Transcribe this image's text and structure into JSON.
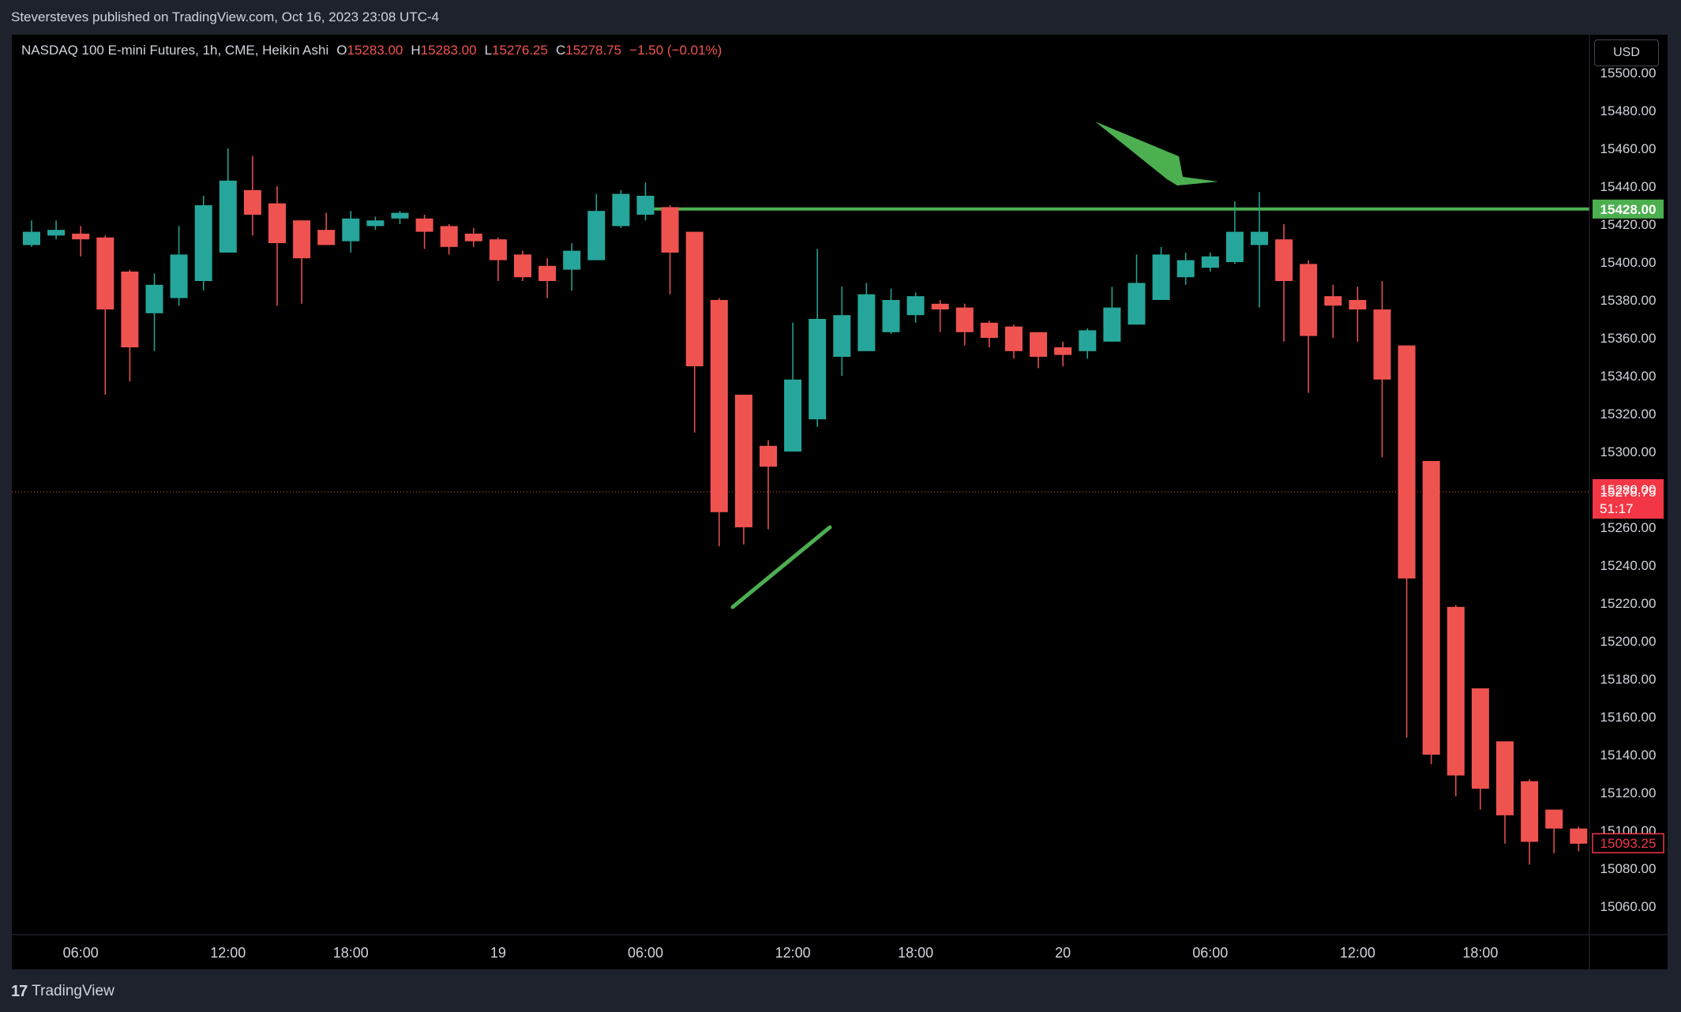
{
  "header": {
    "published_text": "Steversteves published on TradingView.com, Oct 16, 2023 23:08 UTC-4"
  },
  "legend": {
    "symbol": "NASDAQ 100 E-mini Futures, 1h, CME, Heikin Ashi",
    "o_label": "O",
    "o_value": "15283.00",
    "h_label": "H",
    "h_value": "15283.00",
    "l_label": "L",
    "l_value": "15276.25",
    "c_label": "C",
    "c_value": "15278.75",
    "change": "−1.50 (−0.01%)"
  },
  "price_axis": {
    "currency": "USD"
  },
  "footer": {
    "brand": "TradingView",
    "logo_glyph": "17"
  },
  "colors": {
    "up": "#26a69a",
    "down": "#ef5350",
    "annotation": "#4caf50",
    "axis_text": "#d1d4dc",
    "background": "#000000"
  },
  "chart_data": {
    "type": "candlestick",
    "title": "NASDAQ 100 E-mini Futures, 1h, CME, Heikin Ashi",
    "ylim": [
      15045,
      15520
    ],
    "y_ticks": [
      15060,
      15080,
      15100,
      15120,
      15140,
      15160,
      15180,
      15200,
      15220,
      15240,
      15260,
      15280,
      15300,
      15320,
      15340,
      15360,
      15380,
      15400,
      15420,
      15440,
      15460,
      15480,
      15500
    ],
    "x_ticks": [
      {
        "index": 2,
        "label": "06:00"
      },
      {
        "index": 8,
        "label": "12:00"
      },
      {
        "index": 13,
        "label": "18:00"
      },
      {
        "index": 19,
        "label": "19"
      },
      {
        "index": 25,
        "label": "06:00"
      },
      {
        "index": 31,
        "label": "12:00"
      },
      {
        "index": 36,
        "label": "18:00"
      },
      {
        "index": 42,
        "label": "20"
      },
      {
        "index": 48,
        "label": "06:00"
      },
      {
        "index": 54,
        "label": "12:00"
      },
      {
        "index": 59,
        "label": "18:00"
      }
    ],
    "candles": [
      {
        "o": 15409,
        "h": 15422,
        "l": 15408,
        "c": 15416
      },
      {
        "o": 15414,
        "h": 15422,
        "l": 15412,
        "c": 15417
      },
      {
        "o": 15415,
        "h": 15419,
        "l": 15403,
        "c": 15412
      },
      {
        "o": 15413,
        "h": 15414,
        "l": 15330,
        "c": 15375
      },
      {
        "o": 15395,
        "h": 15396,
        "l": 15337,
        "c": 15355
      },
      {
        "o": 15373,
        "h": 15394,
        "l": 15353,
        "c": 15388
      },
      {
        "o": 15381,
        "h": 15419,
        "l": 15377,
        "c": 15404
      },
      {
        "o": 15390,
        "h": 15435,
        "l": 15385,
        "c": 15430
      },
      {
        "o": 15405,
        "h": 15460,
        "l": 15405,
        "c": 15443
      },
      {
        "o": 15438,
        "h": 15456,
        "l": 15414,
        "c": 15425
      },
      {
        "o": 15431,
        "h": 15440,
        "l": 15377,
        "c": 15410
      },
      {
        "o": 15422,
        "h": 15422,
        "l": 15378,
        "c": 15402
      },
      {
        "o": 15417,
        "h": 15426,
        "l": 15413,
        "c": 15409
      },
      {
        "o": 15411,
        "h": 15427,
        "l": 15405,
        "c": 15423
      },
      {
        "o": 15419,
        "h": 15424,
        "l": 15417,
        "c": 15422
      },
      {
        "o": 15423,
        "h": 15427,
        "l": 15420,
        "c": 15426
      },
      {
        "o": 15423,
        "h": 15425,
        "l": 15407,
        "c": 15416
      },
      {
        "o": 15419,
        "h": 15420,
        "l": 15404,
        "c": 15408
      },
      {
        "o": 15415,
        "h": 15418,
        "l": 15408,
        "c": 15411
      },
      {
        "o": 15412,
        "h": 15413,
        "l": 15390,
        "c": 15401
      },
      {
        "o": 15404,
        "h": 15406,
        "l": 15390,
        "c": 15392
      },
      {
        "o": 15398,
        "h": 15402,
        "l": 15381,
        "c": 15390
      },
      {
        "o": 15396,
        "h": 15410,
        "l": 15385,
        "c": 15406
      },
      {
        "o": 15401,
        "h": 15436,
        "l": 15401,
        "c": 15427
      },
      {
        "o": 15419,
        "h": 15438,
        "l": 15418,
        "c": 15436
      },
      {
        "o": 15425,
        "h": 15442,
        "l": 15422,
        "c": 15435
      },
      {
        "o": 15429,
        "h": 15430,
        "l": 15383,
        "c": 15405
      },
      {
        "o": 15416,
        "h": 15416,
        "l": 15310,
        "c": 15345
      },
      {
        "o": 15380,
        "h": 15381,
        "l": 15250,
        "c": 15268
      },
      {
        "o": 15330,
        "h": 15330,
        "l": 15251,
        "c": 15260
      },
      {
        "o": 15303,
        "h": 15306,
        "l": 15259,
        "c": 15292
      },
      {
        "o": 15300,
        "h": 15368,
        "l": 15300,
        "c": 15338
      },
      {
        "o": 15317,
        "h": 15407,
        "l": 15313,
        "c": 15370
      },
      {
        "o": 15350,
        "h": 15387,
        "l": 15340,
        "c": 15372
      },
      {
        "o": 15353,
        "h": 15389,
        "l": 15353,
        "c": 15383
      },
      {
        "o": 15363,
        "h": 15386,
        "l": 15362,
        "c": 15380
      },
      {
        "o": 15372,
        "h": 15384,
        "l": 15368,
        "c": 15382
      },
      {
        "o": 15378,
        "h": 15380,
        "l": 15363,
        "c": 15375
      },
      {
        "o": 15376,
        "h": 15378,
        "l": 15356,
        "c": 15363
      },
      {
        "o": 15368,
        "h": 15369,
        "l": 15355,
        "c": 15360
      },
      {
        "o": 15366,
        "h": 15367,
        "l": 15349,
        "c": 15353
      },
      {
        "o": 15363,
        "h": 15363,
        "l": 15344,
        "c": 15350
      },
      {
        "o": 15355,
        "h": 15358,
        "l": 15345,
        "c": 15351
      },
      {
        "o": 15353,
        "h": 15365,
        "l": 15349,
        "c": 15364
      },
      {
        "o": 15358,
        "h": 15387,
        "l": 15358,
        "c": 15376
      },
      {
        "o": 15367,
        "h": 15404,
        "l": 15367,
        "c": 15389
      },
      {
        "o": 15380,
        "h": 15408,
        "l": 15380,
        "c": 15404
      },
      {
        "o": 15392,
        "h": 15405,
        "l": 15388,
        "c": 15401
      },
      {
        "o": 15397,
        "h": 15405,
        "l": 15395,
        "c": 15403
      },
      {
        "o": 15400,
        "h": 15432,
        "l": 15399,
        "c": 15416
      },
      {
        "o": 15409,
        "h": 15437,
        "l": 15376,
        "c": 15416
      },
      {
        "o": 15412,
        "h": 15420,
        "l": 15358,
        "c": 15390
      },
      {
        "o": 15399,
        "h": 15401,
        "l": 15331,
        "c": 15361
      },
      {
        "o": 15382,
        "h": 15388,
        "l": 15360,
        "c": 15377
      },
      {
        "o": 15380,
        "h": 15387,
        "l": 15358,
        "c": 15375
      },
      {
        "o": 15375,
        "h": 15390,
        "l": 15297,
        "c": 15338
      },
      {
        "o": 15356,
        "h": 15356,
        "l": 15149,
        "c": 15233
      },
      {
        "o": 15295,
        "h": 15295,
        "l": 15135,
        "c": 15140
      },
      {
        "o": 15218,
        "h": 15219,
        "l": 15118,
        "c": 15129
      },
      {
        "o": 15175,
        "h": 15175,
        "l": 15111,
        "c": 15122
      },
      {
        "o": 15147,
        "h": 15147,
        "l": 15093,
        "c": 15108
      },
      {
        "o": 15126,
        "h": 15127,
        "l": 15082,
        "c": 15094
      },
      {
        "o": 15111,
        "h": 15111,
        "l": 15088,
        "c": 15101
      },
      {
        "o": 15101,
        "h": 15102,
        "l": 15089,
        "c": 15093
      }
    ],
    "horizontal_line": {
      "price": 15428.0,
      "label": "15428.00"
    },
    "price_labels": [
      {
        "text": "15280.00",
        "price": 15280,
        "style": "filled"
      },
      {
        "text": "15278.75",
        "price": 15278.75,
        "style": "filled"
      },
      {
        "text": "51:17",
        "price": 15270,
        "style": "filled"
      },
      {
        "text": "15093.25",
        "price": 15093.25,
        "style": "outlined"
      }
    ],
    "current_price": 15278.75
  }
}
